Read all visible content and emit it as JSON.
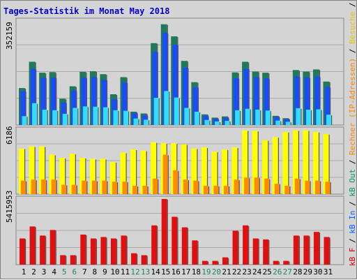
{
  "title": "Tages-Statistik im Monat May 2018",
  "panel_max_labels": [
    "352159",
    "6186",
    "5415953"
  ],
  "legend": {
    "items": [
      {
        "text": "kB F",
        "color": "#cc0000"
      },
      {
        "text": "kB In",
        "color": "#0066ff"
      },
      {
        "text": "kB Out",
        "color": "#009966"
      },
      {
        "text": "Rechner (IP-Adressen)",
        "color": "#ff8800"
      },
      {
        "text": "Besuche",
        "color": "#e6c800"
      },
      {
        "text": "Dateien",
        "color": "#0000cc"
      },
      {
        "text": "Anfragen",
        "color": "#007733"
      }
    ],
    "separator": " / "
  },
  "colors": {
    "anfragen": "#1f7a5a",
    "dateien": "#1a4cff",
    "seiten": "#33ddff",
    "besuche": "#ffff00",
    "rechner": "#ff8c00",
    "kbf": "#e01010",
    "weekend_label": "#1a8a5a",
    "weekday_label": "#000000"
  },
  "chart_data": [
    {
      "type": "bar",
      "title": "Tages-Statistik im Monat May 2018",
      "ylim": [
        0,
        352159
      ],
      "categories": [
        "1",
        "2",
        "3",
        "4",
        "5",
        "6",
        "7",
        "8",
        "9",
        "10",
        "11",
        "12",
        "13",
        "14",
        "15",
        "16",
        "17",
        "18",
        "19",
        "20",
        "21",
        "22",
        "23",
        "24",
        "25",
        "26",
        "27",
        "28",
        "29",
        "30",
        "31"
      ],
      "series": [
        {
          "name": "Anfragen",
          "values": [
            125000,
            214000,
            177000,
            179000,
            89000,
            131000,
            180000,
            182000,
            172000,
            104000,
            162000,
            45000,
            39000,
            277000,
            341000,
            300000,
            217000,
            145000,
            36000,
            25000,
            29000,
            178000,
            214000,
            181000,
            177000,
            31000,
            23000,
            186000,
            181000,
            188000,
            147000
          ]
        },
        {
          "name": "Dateien",
          "values": [
            115000,
            190000,
            160000,
            160000,
            76000,
            117000,
            160000,
            162000,
            153000,
            88000,
            144000,
            40000,
            33000,
            248000,
            312000,
            272000,
            194000,
            128000,
            31000,
            21000,
            24000,
            159000,
            190000,
            162000,
            158000,
            27000,
            20000,
            164000,
            161000,
            164000,
            129000
          ]
        },
        {
          "name": "Seiten",
          "values": [
            30000,
            74000,
            52000,
            50000,
            38000,
            58000,
            63000,
            62000,
            60000,
            50000,
            48000,
            22000,
            18000,
            92000,
            115000,
            93000,
            58000,
            45000,
            17000,
            12000,
            14000,
            50000,
            55000,
            52000,
            49000,
            15000,
            11000,
            57000,
            52000,
            53000,
            35000
          ]
        }
      ]
    },
    {
      "type": "bar",
      "ylim": [
        0,
        6186
      ],
      "categories": [
        "1",
        "2",
        "3",
        "4",
        "5",
        "6",
        "7",
        "8",
        "9",
        "10",
        "11",
        "12",
        "13",
        "14",
        "15",
        "16",
        "17",
        "18",
        "19",
        "20",
        "21",
        "22",
        "23",
        "24",
        "25",
        "26",
        "27",
        "28",
        "29",
        "30",
        "31"
      ],
      "series": [
        {
          "name": "Besuche",
          "values": [
            4400,
            4600,
            4600,
            3800,
            3500,
            3900,
            3500,
            3400,
            3400,
            3100,
            4000,
            4300,
            4200,
            5000,
            4900,
            4900,
            4800,
            4400,
            4500,
            4100,
            4300,
            4500,
            6150,
            6100,
            5200,
            5500,
            6000,
            6150,
            6150,
            6000,
            5800
          ]
        },
        {
          "name": "Rechner",
          "values": [
            1300,
            1400,
            1400,
            1400,
            900,
            900,
            1300,
            1300,
            1300,
            1200,
            1200,
            800,
            800,
            1500,
            3800,
            2300,
            1400,
            1300,
            800,
            800,
            800,
            1400,
            1600,
            1600,
            1500,
            1000,
            800,
            1500,
            1300,
            1300,
            1200
          ]
        }
      ]
    },
    {
      "type": "bar",
      "ylim": [
        0,
        5415953
      ],
      "categories": [
        "1",
        "2",
        "3",
        "4",
        "5",
        "6",
        "7",
        "8",
        "9",
        "10",
        "11",
        "12",
        "13",
        "14",
        "15",
        "16",
        "17",
        "18",
        "19",
        "20",
        "21",
        "22",
        "23",
        "24",
        "25",
        "26",
        "27",
        "28",
        "29",
        "30",
        "31"
      ],
      "series": [
        {
          "name": "kB F",
          "values": [
            2160000,
            3150000,
            2400000,
            2860000,
            780000,
            780000,
            2480000,
            2160000,
            2280000,
            2160000,
            2400000,
            940000,
            780000,
            3240000,
            5415953,
            3950000,
            3080000,
            2000000,
            310000,
            310000,
            600000,
            2800000,
            3240000,
            2160000,
            2080000,
            310000,
            310000,
            2400000,
            2400000,
            2700000,
            2280000
          ]
        }
      ]
    }
  ]
}
